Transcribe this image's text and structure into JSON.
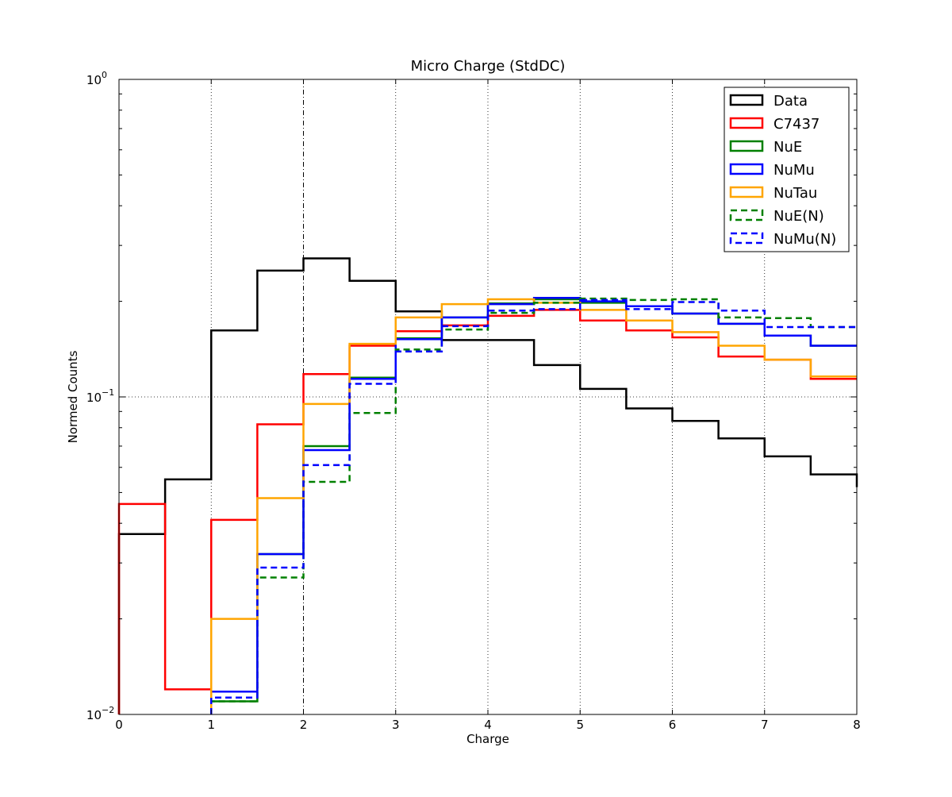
{
  "chart_data": {
    "type": "step-histogram",
    "title": "Micro Charge (StdDC)",
    "xlabel": "Charge",
    "ylabel": "Normed Counts",
    "xlim": [
      0,
      8
    ],
    "ylim": [
      0.01,
      1
    ],
    "yscale": "log",
    "grid": true,
    "x_ticks": [
      "0",
      "1",
      "2",
      "3",
      "4",
      "5",
      "6",
      "7",
      "8"
    ],
    "y_ticks": [
      {
        "value": 0.01,
        "base": "10",
        "exp": "−2"
      },
      {
        "value": 0.1,
        "base": "10",
        "exp": "−1"
      },
      {
        "value": 1,
        "base": "10",
        "exp": "0"
      }
    ],
    "vline_x": 2,
    "legend_position": "top-right",
    "bin_edges": [
      0,
      0.5,
      1,
      1.5,
      2,
      2.5,
      3,
      3.5,
      4,
      4.5,
      5,
      5.5,
      6,
      6.5,
      7,
      7.5,
      8
    ],
    "series": [
      {
        "name": "Data",
        "color": "#000000",
        "dashed": false,
        "values": [
          0.037,
          0.055,
          0.162,
          0.25,
          0.273,
          0.232,
          0.186,
          0.151,
          0.151,
          0.126,
          0.106,
          0.092,
          0.084,
          0.074,
          0.065,
          0.057,
          0.052
        ]
      },
      {
        "name": "C7437",
        "color": "#ff0000",
        "dashed": false,
        "values": [
          0.046,
          0.012,
          0.041,
          0.082,
          0.118,
          0.145,
          0.161,
          0.168,
          0.18,
          0.188,
          0.174,
          0.162,
          0.154,
          0.134,
          0.131,
          0.114,
          0.114
        ]
      },
      {
        "name": "NuE",
        "color": "#008000",
        "dashed": false,
        "values": [
          null,
          null,
          0.011,
          0.032,
          0.07,
          0.115,
          0.153,
          0.178,
          0.197,
          0.203,
          0.198,
          0.193,
          0.183,
          0.17,
          0.156,
          0.145,
          0.145
        ]
      },
      {
        "name": "NuMu",
        "color": "#0000ff",
        "dashed": false,
        "values": [
          null,
          null,
          0.0118,
          0.032,
          0.068,
          0.114,
          0.152,
          0.178,
          0.196,
          0.205,
          0.2,
          0.193,
          0.183,
          0.17,
          0.156,
          0.145,
          0.145
        ]
      },
      {
        "name": "NuTau",
        "color": "#ffa500",
        "dashed": false,
        "values": [
          null,
          null,
          0.02,
          0.048,
          0.095,
          0.147,
          0.178,
          0.196,
          0.203,
          0.198,
          0.188,
          0.174,
          0.16,
          0.145,
          0.131,
          0.116,
          0.116
        ]
      },
      {
        "name": "NuE(N)",
        "color": "#008000",
        "dashed": true,
        "values": [
          null,
          null,
          0.011,
          0.027,
          0.054,
          0.089,
          0.141,
          0.163,
          0.184,
          0.198,
          0.204,
          0.202,
          0.203,
          0.178,
          0.177,
          0.166,
          0.166
        ]
      },
      {
        "name": "NuMu(N)",
        "color": "#0000ff",
        "dashed": true,
        "values": [
          null,
          null,
          0.0113,
          0.029,
          0.061,
          0.11,
          0.139,
          0.167,
          0.187,
          0.189,
          0.202,
          0.189,
          0.199,
          0.187,
          0.166,
          0.166,
          0.166
        ]
      }
    ]
  }
}
